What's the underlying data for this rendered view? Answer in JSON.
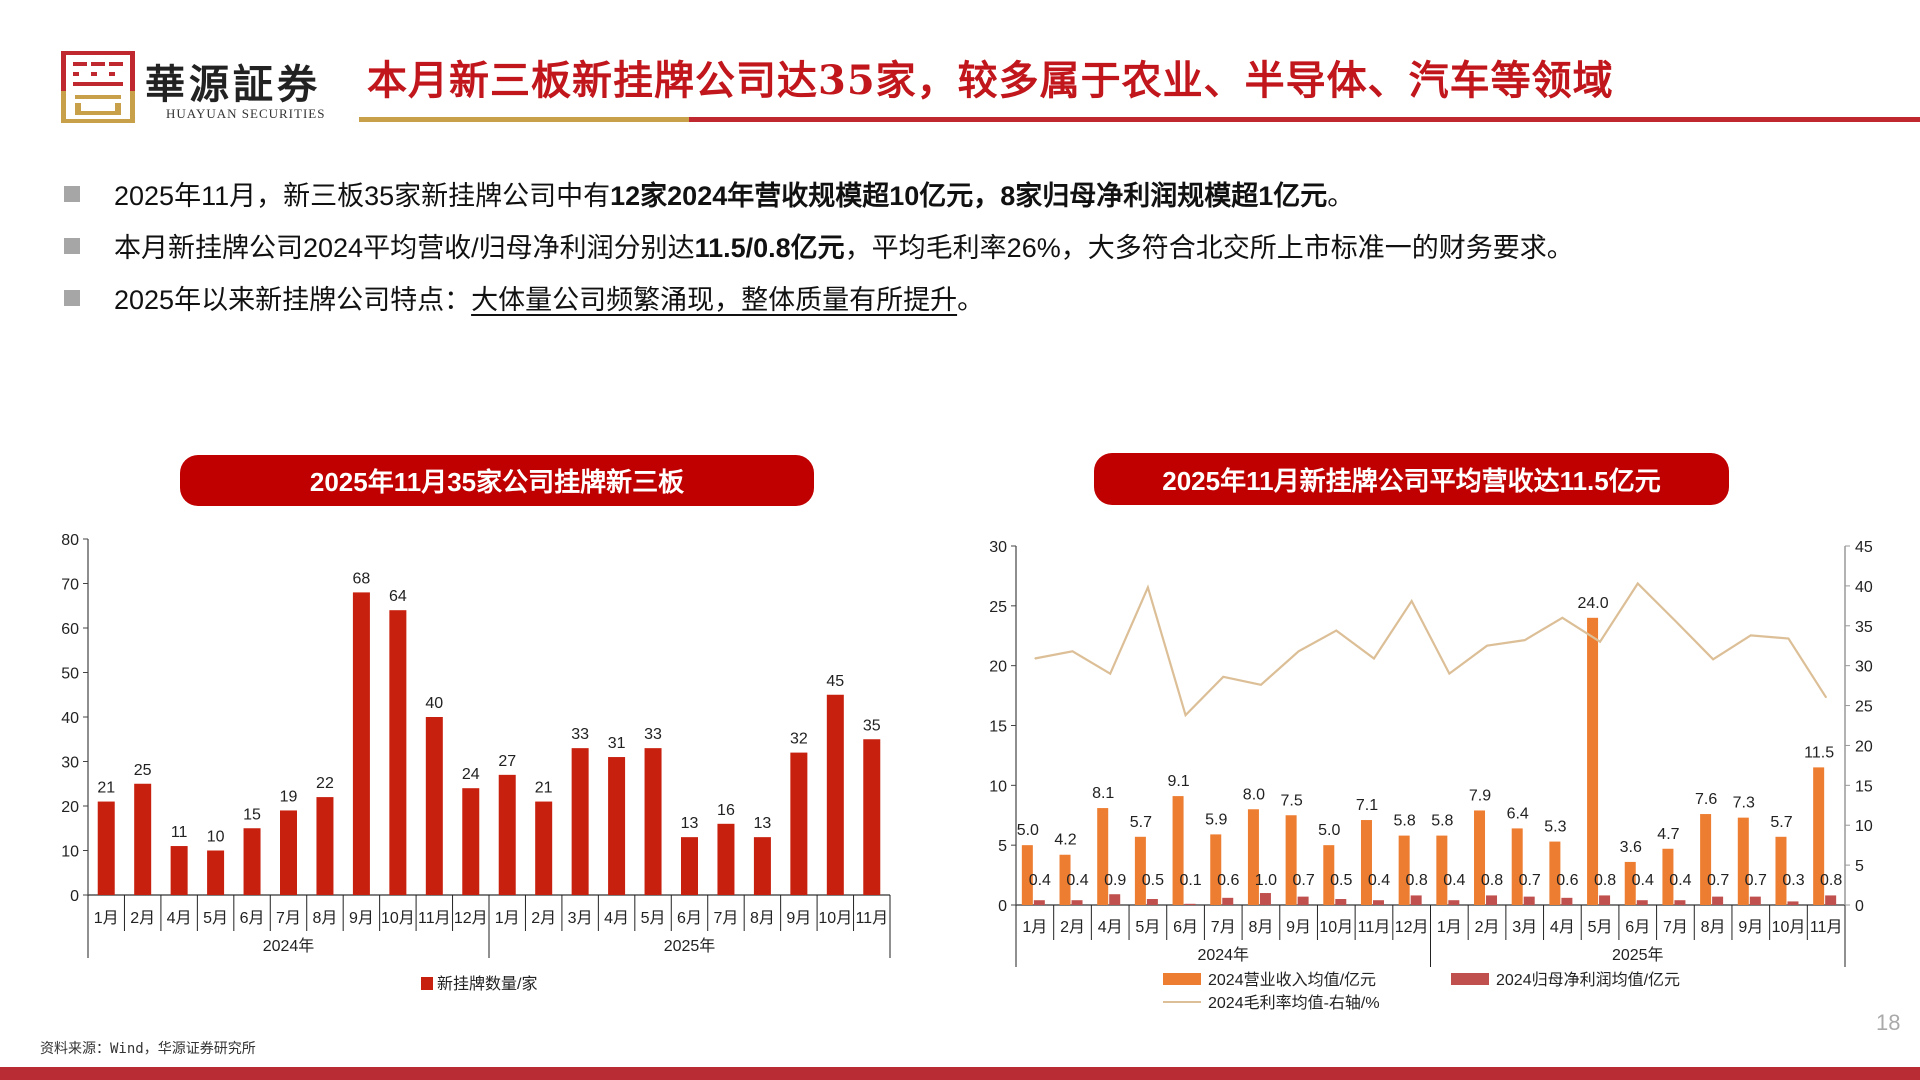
{
  "header": {
    "logo_cn": "華源証券",
    "logo_en": "HUAYUAN SECURITIES",
    "title": "本月新三板新挂牌公司达35家，较多属于农业、半导体、汽车等领域"
  },
  "bullets": [
    {
      "parts": [
        {
          "text": "2025年11月，新三板35家新挂牌公司中有",
          "bold": false
        },
        {
          "text": "12家2024年营收规模超10亿元，8家归母净利润规模超1亿元",
          "bold": true
        },
        {
          "text": "。",
          "bold": false
        }
      ]
    },
    {
      "parts": [
        {
          "text": "本月新挂牌公司2024平均营收/归母净利润分别达",
          "bold": false
        },
        {
          "text": "11.5/0.8亿元",
          "bold": true
        },
        {
          "text": "，平均毛利率26%，大多符合北交所上市标准一的财务要求。",
          "bold": false
        }
      ]
    },
    {
      "parts": [
        {
          "text": "2025年以来新挂牌公司特点：",
          "bold": false
        },
        {
          "text": "大体量公司频繁涌现，整体质量有所提升",
          "bold": false,
          "underline": true
        },
        {
          "text": "。",
          "bold": false
        }
      ]
    }
  ],
  "colors": {
    "brand_red": "#c00000",
    "title_red": "#c0161c",
    "gold": "#c9a04a",
    "bar_red": "#c8200e",
    "orange": "#ed7d31",
    "profit_red": "#c0504d",
    "margin_line": "#dcbf97"
  },
  "chart_data": [
    {
      "type": "bar",
      "title": "2025年11月35家公司挂牌新三板",
      "categories": [
        "1月",
        "2月",
        "4月",
        "5月",
        "6月",
        "7月",
        "8月",
        "9月",
        "10月",
        "11月",
        "12月",
        "1月",
        "2月",
        "3月",
        "4月",
        "5月",
        "6月",
        "7月",
        "8月",
        "9月",
        "10月",
        "11月"
      ],
      "groups": [
        {
          "label": "2024年",
          "count": 11
        },
        {
          "label": "2025年",
          "count": 11
        }
      ],
      "series": [
        {
          "name": "新挂牌数量/家",
          "values": [
            21,
            25,
            11,
            10,
            15,
            19,
            22,
            68,
            64,
            40,
            24,
            27,
            21,
            33,
            31,
            33,
            13,
            16,
            13,
            32,
            45,
            35
          ]
        }
      ],
      "ylim": [
        0,
        80
      ],
      "yticks": [
        0,
        10,
        20,
        30,
        40,
        50,
        60,
        70,
        80
      ],
      "legend": "bottom",
      "grid": false
    },
    {
      "type": "bar+line",
      "title": "2025年11月新挂牌公司平均营收达11.5亿元",
      "categories": [
        "1月",
        "2月",
        "4月",
        "5月",
        "6月",
        "7月",
        "8月",
        "9月",
        "10月",
        "11月",
        "12月",
        "1月",
        "2月",
        "3月",
        "4月",
        "5月",
        "6月",
        "7月",
        "8月",
        "9月",
        "10月",
        "11月"
      ],
      "groups": [
        {
          "label": "2024年",
          "count": 11
        },
        {
          "label": "2025年",
          "count": 11
        }
      ],
      "series": [
        {
          "name": "2024营业收入均值/亿元",
          "type": "bar",
          "axis": "left",
          "values": [
            5.0,
            4.2,
            8.1,
            5.7,
            9.1,
            5.9,
            8.0,
            7.5,
            5.0,
            7.1,
            5.8,
            5.8,
            7.9,
            6.4,
            5.3,
            24.0,
            3.6,
            4.7,
            7.6,
            7.3,
            5.7,
            11.5
          ]
        },
        {
          "name": "2024归母净利润均值/亿元",
          "type": "bar",
          "axis": "left",
          "values": [
            0.4,
            0.4,
            0.9,
            0.5,
            0.1,
            0.6,
            1.0,
            0.7,
            0.5,
            0.4,
            0.8,
            0.4,
            0.8,
            0.7,
            0.6,
            0.8,
            0.4,
            0.4,
            0.7,
            0.7,
            0.3,
            0.8
          ]
        },
        {
          "name": "2024毛利率均值-右轴/%",
          "type": "line",
          "axis": "right",
          "values": [
            30.9,
            31.8,
            29.0,
            39.8,
            23.8,
            28.6,
            27.6,
            31.8,
            34.4,
            30.9,
            38.1,
            29.0,
            32.5,
            33.2,
            36.0,
            33.0,
            40.3,
            35.6,
            30.8,
            33.8,
            33.4,
            26.0
          ]
        }
      ],
      "ylim": [
        0,
        30
      ],
      "yticks": [
        0,
        5,
        10,
        15,
        20,
        25,
        30
      ],
      "y2lim": [
        0,
        45
      ],
      "y2ticks": [
        0,
        5,
        10,
        15,
        20,
        25,
        30,
        35,
        40,
        45
      ],
      "legend": "bottom",
      "grid": false
    }
  ],
  "footer": {
    "source": "资料来源：Wind，华源证券研究所",
    "page_number": "18"
  }
}
